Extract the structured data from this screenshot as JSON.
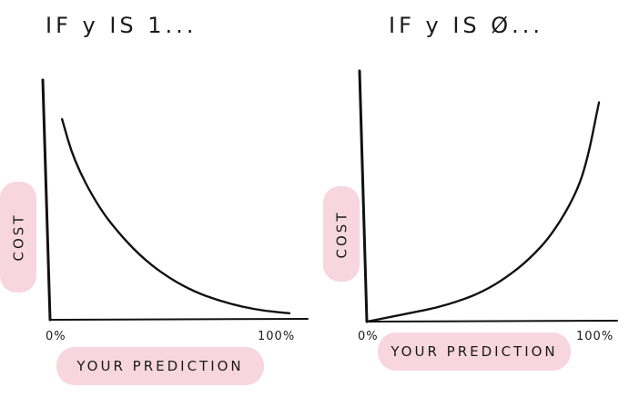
{
  "chart_data": [
    {
      "type": "line",
      "title": "IF y IS 1...",
      "xlabel": "YOUR PREDICTION",
      "ylabel": "COST",
      "x_tick_labels": [
        "0%",
        "100%"
      ],
      "xlim": [
        0,
        100
      ],
      "ylim": [
        0,
        100
      ],
      "grid": false,
      "series": [
        {
          "x": [
            5,
            10,
            20,
            30,
            40,
            50,
            60,
            70,
            80,
            90,
            100
          ],
          "y": [
            92,
            73,
            52,
            38,
            27,
            19,
            13,
            9,
            6,
            4,
            3
          ]
        }
      ]
    },
    {
      "type": "line",
      "title": "IF y IS Ø...",
      "xlabel": "YOUR PREDICTION",
      "ylabel": "COST",
      "x_tick_labels": [
        "0%",
        "100%"
      ],
      "xlim": [
        0,
        100
      ],
      "ylim": [
        0,
        100
      ],
      "grid": false,
      "series": [
        {
          "x": [
            0,
            10,
            20,
            30,
            40,
            50,
            60,
            70,
            80,
            90,
            95,
            100
          ],
          "y": [
            0,
            2,
            4,
            6,
            9,
            13,
            19,
            27,
            38,
            55,
            70,
            95
          ]
        }
      ]
    }
  ]
}
